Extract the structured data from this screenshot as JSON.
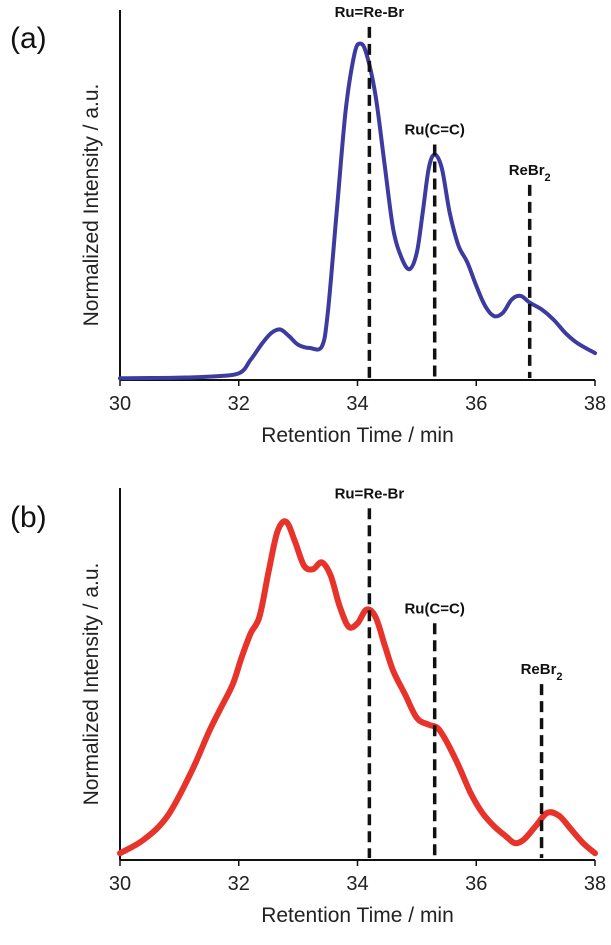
{
  "chart_data": [
    {
      "type": "line",
      "panel_label": "(a)",
      "xlabel": "Retention Time / min",
      "ylabel": "Normalized Intensity / a.u.",
      "xlim": [
        30,
        38
      ],
      "xticks": [
        "30",
        "32",
        "34",
        "36",
        "38"
      ],
      "ylim": [
        0,
        1.1
      ],
      "grid": false,
      "series_color": "#3d3aa0",
      "series": [
        {
          "x": [
            30.0,
            30.5,
            31.0,
            31.5,
            32.0,
            32.2,
            32.4,
            32.55,
            32.7,
            32.85,
            33.0,
            33.2,
            33.4,
            33.5,
            33.65,
            33.8,
            33.95,
            34.05,
            34.15,
            34.3,
            34.45,
            34.6,
            34.75,
            34.88,
            35.0,
            35.1,
            35.2,
            35.3,
            35.42,
            35.55,
            35.7,
            35.85,
            36.0,
            36.15,
            36.3,
            36.45,
            36.6,
            36.75,
            36.9,
            37.1,
            37.3,
            37.5,
            37.7,
            38.0
          ],
          "y": [
            0.005,
            0.006,
            0.007,
            0.01,
            0.02,
            0.06,
            0.11,
            0.14,
            0.15,
            0.13,
            0.105,
            0.095,
            0.1,
            0.2,
            0.5,
            0.8,
            0.97,
            1.0,
            0.97,
            0.85,
            0.65,
            0.45,
            0.36,
            0.33,
            0.38,
            0.5,
            0.63,
            0.67,
            0.63,
            0.5,
            0.4,
            0.35,
            0.28,
            0.22,
            0.19,
            0.2,
            0.24,
            0.25,
            0.23,
            0.21,
            0.18,
            0.14,
            0.11,
            0.08
          ]
        }
      ],
      "markers": [
        {
          "label": "Ru=Re-Br",
          "x": 34.2,
          "y_top": 1.05
        },
        {
          "label": "Ru(C=C)",
          "x": 35.3,
          "y_top": 0.7
        },
        {
          "label": "ReBr",
          "subscript": "2",
          "x": 36.9,
          "y_top": 0.58
        }
      ]
    },
    {
      "type": "line",
      "panel_label": "(b)",
      "xlabel": "Retention Time / min",
      "ylabel": "Normalized Intensity / a.u.",
      "xlim": [
        30,
        38
      ],
      "xticks": [
        "30",
        "32",
        "34",
        "36",
        "38"
      ],
      "ylim": [
        0,
        1.1
      ],
      "grid": false,
      "series_color": "#e8332b",
      "series": [
        {
          "x": [
            30.0,
            30.4,
            30.8,
            31.2,
            31.5,
            31.7,
            31.9,
            32.05,
            32.2,
            32.35,
            32.5,
            32.65,
            32.8,
            32.95,
            33.1,
            33.25,
            33.4,
            33.55,
            33.7,
            33.85,
            34.0,
            34.15,
            34.3,
            34.45,
            34.6,
            34.8,
            35.0,
            35.2,
            35.35,
            35.5,
            35.7,
            35.9,
            36.1,
            36.3,
            36.5,
            36.65,
            36.8,
            37.0,
            37.2,
            37.4,
            37.6,
            37.8,
            38.0
          ],
          "y": [
            0.02,
            0.06,
            0.13,
            0.26,
            0.38,
            0.45,
            0.52,
            0.6,
            0.67,
            0.72,
            0.85,
            0.97,
            1.0,
            0.94,
            0.87,
            0.86,
            0.88,
            0.84,
            0.75,
            0.69,
            0.7,
            0.74,
            0.72,
            0.64,
            0.56,
            0.49,
            0.42,
            0.4,
            0.39,
            0.35,
            0.28,
            0.2,
            0.14,
            0.1,
            0.07,
            0.05,
            0.06,
            0.1,
            0.14,
            0.13,
            0.09,
            0.05,
            0.02
          ]
        }
      ],
      "markers": [
        {
          "label": "Ru=Re-Br",
          "x": 34.2,
          "y_top": 1.04
        },
        {
          "label": "Ru(C=C)",
          "x": 35.3,
          "y_top": 0.7
        },
        {
          "label": "ReBr",
          "subscript": "2",
          "x": 37.1,
          "y_top": 0.52
        }
      ]
    }
  ]
}
